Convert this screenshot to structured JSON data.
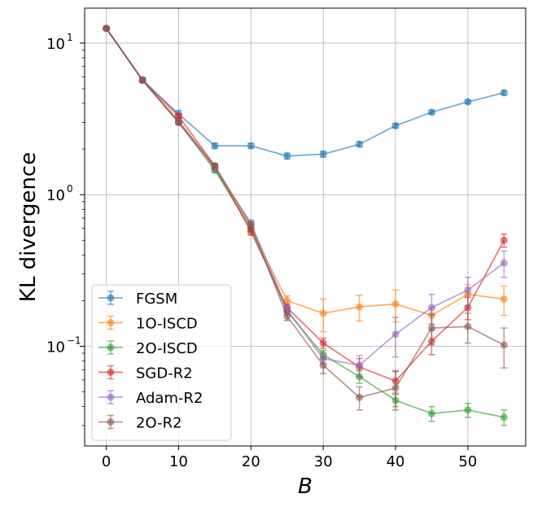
{
  "chart_data": {
    "type": "line",
    "title": "",
    "xlabel": "B",
    "ylabel": "KL divergence",
    "yscale": "log",
    "xlim": [
      -3,
      58
    ],
    "ylim": [
      0.022,
      17
    ],
    "grid": true,
    "legend_position": "lower-left",
    "x": [
      0,
      5,
      10,
      15,
      20,
      25,
      30,
      35,
      40,
      45,
      50,
      55
    ],
    "x_ticks": [
      0,
      10,
      20,
      30,
      40,
      50
    ],
    "x_tick_labels": [
      "0",
      "10",
      "20",
      "30",
      "40",
      "50"
    ],
    "y_ticks": [
      0.1,
      1,
      10
    ],
    "y_tick_labels": [
      "10",
      "10",
      "10"
    ],
    "y_tick_exponents": [
      "−1",
      "0",
      "1"
    ],
    "series": [
      {
        "name": "FGSM",
        "color": "#1f77b4",
        "values": [
          12.5,
          5.7,
          3.4,
          2.1,
          2.1,
          1.8,
          1.85,
          2.15,
          2.85,
          3.5,
          4.1,
          4.7
        ],
        "err": [
          0.3,
          0.2,
          0.2,
          0.08,
          0.08,
          0.08,
          0.08,
          0.08,
          0.1,
          0.1,
          0.12,
          0.15
        ]
      },
      {
        "name": "1O-ISCD",
        "color": "#ff7f0e",
        "values": [
          12.5,
          5.7,
          3.1,
          1.5,
          0.6,
          0.2,
          0.165,
          0.182,
          0.19,
          0.16,
          0.22,
          0.205
        ],
        "err": [
          0.3,
          0.2,
          0.1,
          0.05,
          0.03,
          0.015,
          0.04,
          0.035,
          0.045,
          0.02,
          0.035,
          0.045
        ]
      },
      {
        "name": "2O-ISCD",
        "color": "#2ca02c",
        "values": [
          12.5,
          5.7,
          3.0,
          1.45,
          0.6,
          0.17,
          0.088,
          0.063,
          0.044,
          0.036,
          0.038,
          0.034
        ],
        "err": [
          0.3,
          0.2,
          0.1,
          0.05,
          0.03,
          0.01,
          0.006,
          0.006,
          0.004,
          0.004,
          0.004,
          0.004
        ]
      },
      {
        "name": "SGD-R2",
        "color": "#d62728",
        "values": [
          12.5,
          5.7,
          3.3,
          1.55,
          0.57,
          0.18,
          0.105,
          0.073,
          0.059,
          0.108,
          0.18,
          0.5
        ],
        "err": [
          0.3,
          0.2,
          0.1,
          0.05,
          0.03,
          0.01,
          0.008,
          0.01,
          0.01,
          0.02,
          0.03,
          0.05
        ]
      },
      {
        "name": "Adam-R2",
        "color": "#9467bd",
        "values": [
          12.5,
          5.7,
          3.0,
          1.5,
          0.65,
          0.175,
          0.083,
          0.075,
          0.12,
          0.18,
          0.235,
          0.355
        ],
        "err": [
          0.3,
          0.2,
          0.1,
          0.05,
          0.03,
          0.01,
          0.006,
          0.012,
          0.035,
          0.04,
          0.05,
          0.07
        ]
      },
      {
        "name": "2O-R2",
        "color": "#8c564b",
        "values": [
          12.5,
          5.7,
          3.0,
          1.55,
          0.63,
          0.158,
          0.075,
          0.046,
          0.053,
          0.132,
          0.135,
          0.102
        ],
        "err": [
          0.3,
          0.2,
          0.1,
          0.05,
          0.03,
          0.01,
          0.009,
          0.008,
          0.015,
          0.03,
          0.03,
          0.03
        ]
      }
    ]
  }
}
